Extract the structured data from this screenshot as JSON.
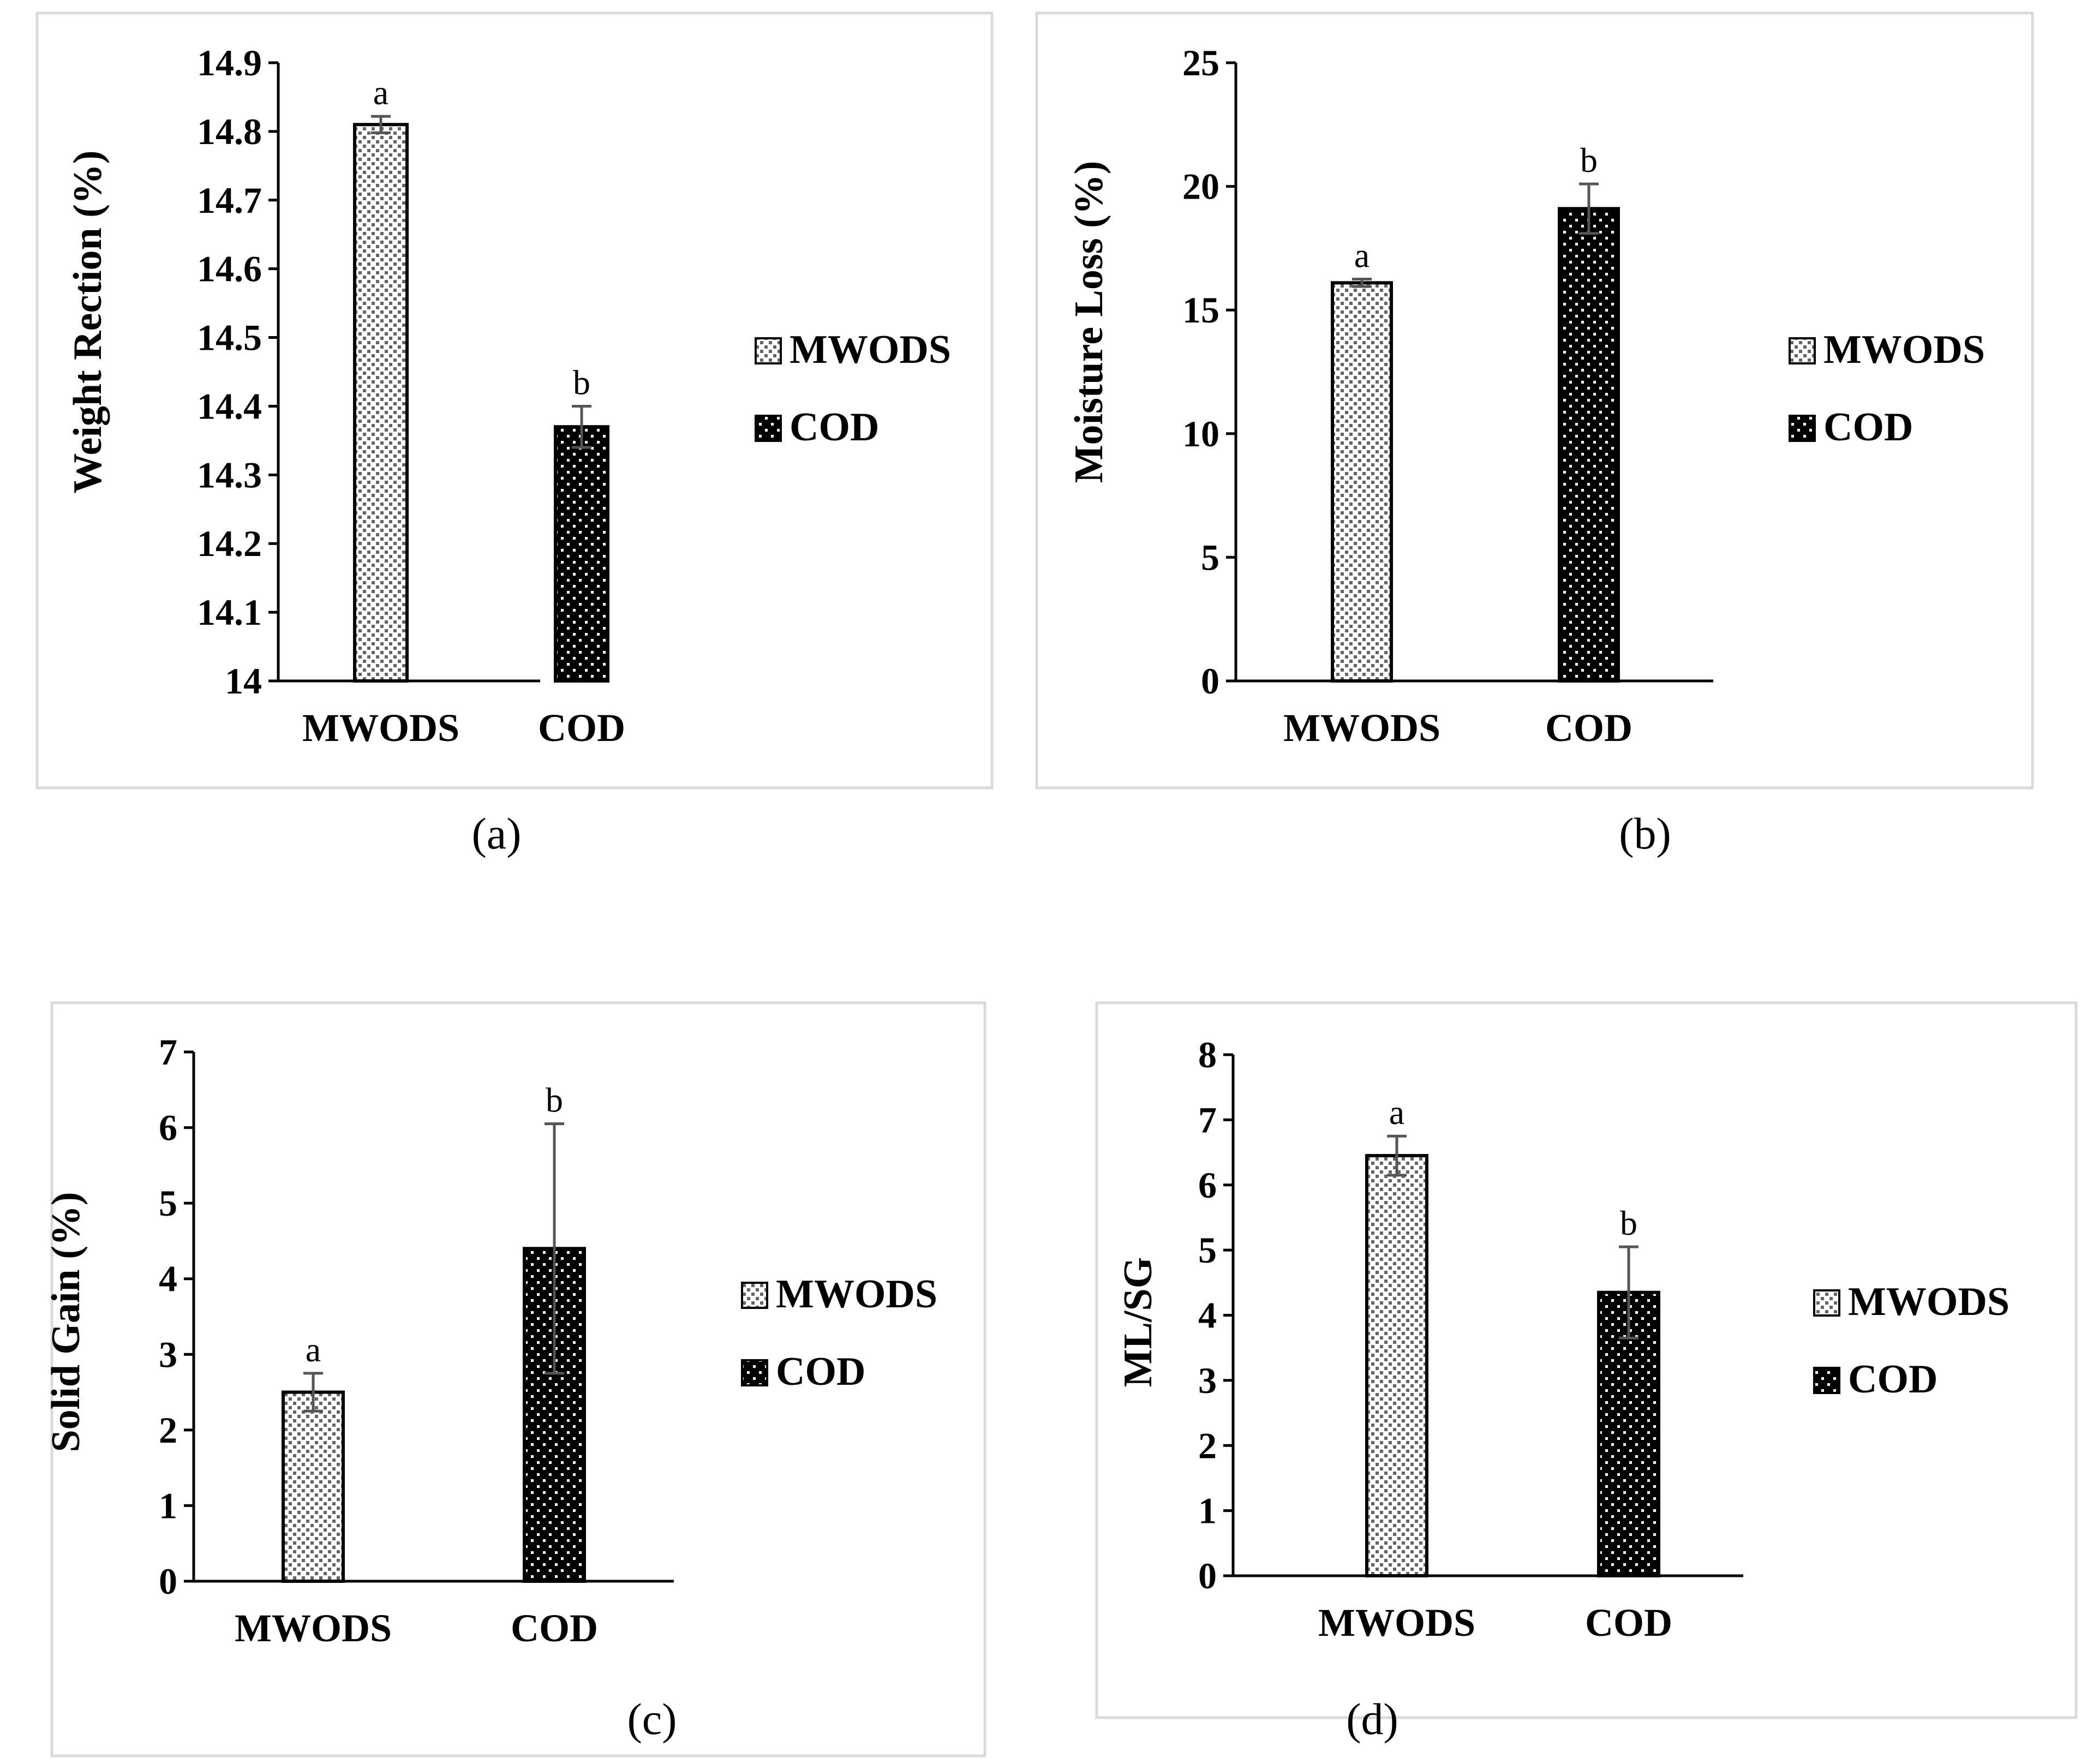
{
  "chart_data": [
    {
      "type": "bar",
      "panel": "(a)",
      "ylabel": "Weight Rection (%)",
      "ylim": [
        14,
        14.9
      ],
      "yticks": [
        14,
        14.1,
        14.2,
        14.3,
        14.4,
        14.5,
        14.6,
        14.7,
        14.8,
        14.9
      ],
      "yticklabels": [
        "14",
        "14.1",
        "14.2",
        "14.3",
        "14.4",
        "14.5",
        "14.6",
        "14.7",
        "14.8",
        "14.9"
      ],
      "categories": [
        "MWODS",
        "COD"
      ],
      "values": [
        14.81,
        14.37
      ],
      "errors": [
        0.012,
        0.03
      ],
      "significance": [
        "a",
        "b"
      ],
      "legend": [
        "MWODS",
        "COD"
      ]
    },
    {
      "type": "bar",
      "panel": "(b)",
      "ylabel": "Moisture Loss (%)",
      "ylim": [
        0,
        25
      ],
      "yticks": [
        0,
        5,
        10,
        15,
        20,
        25
      ],
      "yticklabels": [
        "0",
        "5",
        "10",
        "15",
        "20",
        "25"
      ],
      "categories": [
        "MWODS",
        "COD"
      ],
      "values": [
        16.1,
        19.1
      ],
      "errors": [
        0.15,
        1.0
      ],
      "significance": [
        "a",
        "b"
      ],
      "legend": [
        "MWODS",
        "COD"
      ]
    },
    {
      "type": "bar",
      "panel": "(c)",
      "ylabel": "Solid Gain (%)",
      "ylim": [
        0,
        7
      ],
      "yticks": [
        0,
        1,
        2,
        3,
        4,
        5,
        6,
        7
      ],
      "yticklabels": [
        "0",
        "1",
        "2",
        "3",
        "4",
        "5",
        "6",
        "7"
      ],
      "categories": [
        "MWODS",
        "COD"
      ],
      "values": [
        2.5,
        4.4
      ],
      "errors": [
        0.25,
        1.65
      ],
      "significance": [
        "a",
        "b"
      ],
      "legend": [
        "MWODS",
        "COD"
      ]
    },
    {
      "type": "bar",
      "panel": "(d)",
      "ylabel": "ML/SG",
      "ylim": [
        0,
        8
      ],
      "yticks": [
        0,
        1,
        2,
        3,
        4,
        5,
        6,
        7,
        8
      ],
      "yticklabels": [
        "0",
        "1",
        "2",
        "3",
        "4",
        "5",
        "6",
        "7",
        "8"
      ],
      "categories": [
        "MWODS",
        "COD"
      ],
      "values": [
        6.45,
        4.35
      ],
      "errors": [
        0.3,
        0.7
      ],
      "significance": [
        "a",
        "b"
      ],
      "legend": [
        "MWODS",
        "COD"
      ]
    }
  ],
  "colors": {
    "bar_stroke": "#000000",
    "mwods_fill": "#ffffff",
    "mwods_dot": "#555555",
    "cod_fill": "#000000",
    "cod_dot": "#ffffff",
    "frame": "#d9d9d9",
    "error_bar": "#555555"
  }
}
